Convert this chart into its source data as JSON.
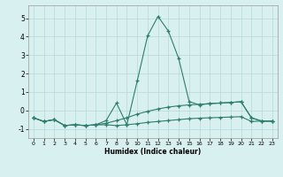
{
  "x": [
    0,
    1,
    2,
    3,
    4,
    5,
    6,
    7,
    8,
    9,
    10,
    11,
    12,
    13,
    14,
    15,
    16,
    17,
    18,
    19,
    20,
    21,
    22,
    23
  ],
  "line1": [
    -0.4,
    -0.6,
    -0.5,
    -0.82,
    -0.78,
    -0.82,
    -0.78,
    -0.78,
    -0.82,
    -0.78,
    -0.72,
    -0.65,
    -0.6,
    -0.55,
    -0.5,
    -0.45,
    -0.42,
    -0.4,
    -0.38,
    -0.36,
    -0.34,
    -0.6,
    -0.58,
    -0.58
  ],
  "line2": [
    -0.4,
    -0.6,
    -0.5,
    -0.82,
    -0.78,
    -0.82,
    -0.78,
    -0.7,
    -0.55,
    -0.4,
    -0.2,
    -0.05,
    0.08,
    0.18,
    0.25,
    0.3,
    0.33,
    0.37,
    0.4,
    0.43,
    0.47,
    -0.4,
    -0.58,
    -0.58
  ],
  "line3": [
    -0.4,
    -0.6,
    -0.5,
    -0.82,
    -0.78,
    -0.82,
    -0.78,
    -0.55,
    0.4,
    -0.78,
    1.6,
    4.05,
    5.1,
    4.3,
    2.8,
    0.48,
    0.3,
    0.37,
    0.4,
    0.43,
    0.47,
    -0.4,
    -0.58,
    -0.58
  ],
  "color": "#2e7d6e",
  "bg_color": "#d8f0f0",
  "grid_color": "#b8d8d8",
  "xlabel": "Humidex (Indice chaleur)",
  "ylim": [
    -1.5,
    5.7
  ],
  "xlim": [
    -0.5,
    23.5
  ],
  "yticks": [
    -1,
    0,
    1,
    2,
    3,
    4,
    5
  ],
  "xticks": [
    0,
    1,
    2,
    3,
    4,
    5,
    6,
    7,
    8,
    9,
    10,
    11,
    12,
    13,
    14,
    15,
    16,
    17,
    18,
    19,
    20,
    21,
    22,
    23
  ],
  "xlabel_fontsize": 5.5,
  "tick_fontsize_x": 4.5,
  "tick_fontsize_y": 5.5,
  "linewidth": 0.8,
  "markersize": 3.0,
  "markeredgewidth": 0.9
}
